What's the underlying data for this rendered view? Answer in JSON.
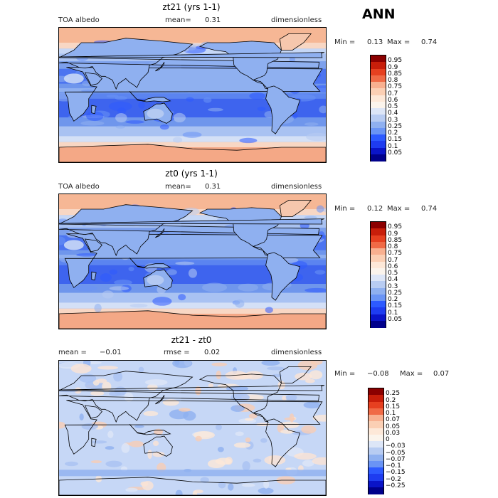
{
  "season": "ANN",
  "palette": {
    "blues": [
      "#00008b",
      "#0a14c8",
      "#1e3cf0",
      "#2d5aff",
      "#4a78ff",
      "#6a94f5",
      "#8fb0f0",
      "#b8ccf2",
      "#dde6f7"
    ],
    "neutral": "#fbf4ec",
    "reds": [
      "#fde8d8",
      "#fbcfb4",
      "#f8b090",
      "#f5906e",
      "#f06a46",
      "#e64020",
      "#c81e0a",
      "#8b0000"
    ]
  },
  "panels": [
    {
      "id": "zt21",
      "title": "zt21 (yrs 1-1)",
      "left_label": "TOA albedo",
      "mean_label": "mean=",
      "mean_value": "0.31",
      "units": "dimensionless",
      "min_label": "Min =",
      "min_value": "0.13",
      "max_label": "Max =",
      "max_value": "0.74",
      "colorbar_ticks": [
        "0.95",
        "0.9",
        "0.85",
        "0.8",
        "0.75",
        "0.7",
        "0.6",
        "0.5",
        "0.4",
        "0.3",
        "0.25",
        "0.2",
        "0.15",
        "0.1",
        "0.05"
      ]
    },
    {
      "id": "zt0",
      "title": "zt0 (yrs 1-1)",
      "left_label": "TOA albedo",
      "mean_label": "mean=",
      "mean_value": "0.31",
      "units": "dimensionless",
      "min_label": "Min =",
      "min_value": "0.12",
      "max_label": "Max =",
      "max_value": "0.74",
      "colorbar_ticks": [
        "0.95",
        "0.9",
        "0.85",
        "0.8",
        "0.75",
        "0.7",
        "0.6",
        "0.5",
        "0.4",
        "0.3",
        "0.25",
        "0.2",
        "0.15",
        "0.1",
        "0.05"
      ]
    },
    {
      "id": "diff",
      "title": "zt21 - zt0",
      "left_label": "mean =",
      "left_value": "−0.01",
      "mean_label": "rmse =",
      "mean_value": "0.02",
      "units": "dimensionless",
      "min_label": "Min =",
      "min_value": "−0.08",
      "max_label": "Max =",
      "max_value": "0.07",
      "colorbar_ticks": [
        "0.25",
        "0.2",
        "0.15",
        "0.1",
        "0.07",
        "0.05",
        "0.03",
        "0",
        "−0.03",
        "−0.05",
        "−0.07",
        "−0.1",
        "−0.15",
        "−0.2",
        "−0.25"
      ]
    }
  ],
  "chart_data": [
    {
      "type": "heatmap",
      "title": "zt21 (yrs 1-1)",
      "variable": "TOA albedo",
      "units": "dimensionless",
      "mean": 0.31,
      "min": 0.13,
      "max": 0.74,
      "color_levels": [
        0.05,
        0.1,
        0.15,
        0.2,
        0.25,
        0.3,
        0.4,
        0.5,
        0.6,
        0.7,
        0.75,
        0.8,
        0.85,
        0.9,
        0.95
      ]
    },
    {
      "type": "heatmap",
      "title": "zt0 (yrs 1-1)",
      "variable": "TOA albedo",
      "units": "dimensionless",
      "mean": 0.31,
      "min": 0.12,
      "max": 0.74,
      "color_levels": [
        0.05,
        0.1,
        0.15,
        0.2,
        0.25,
        0.3,
        0.4,
        0.5,
        0.6,
        0.7,
        0.75,
        0.8,
        0.85,
        0.9,
        0.95
      ]
    },
    {
      "type": "heatmap",
      "title": "zt21 - zt0",
      "units": "dimensionless",
      "mean": -0.01,
      "rmse": 0.02,
      "min": -0.08,
      "max": 0.07,
      "color_levels": [
        -0.25,
        -0.2,
        -0.15,
        -0.1,
        -0.07,
        -0.05,
        -0.03,
        0,
        0.03,
        0.05,
        0.07,
        0.1,
        0.15,
        0.2,
        0.25
      ]
    }
  ]
}
